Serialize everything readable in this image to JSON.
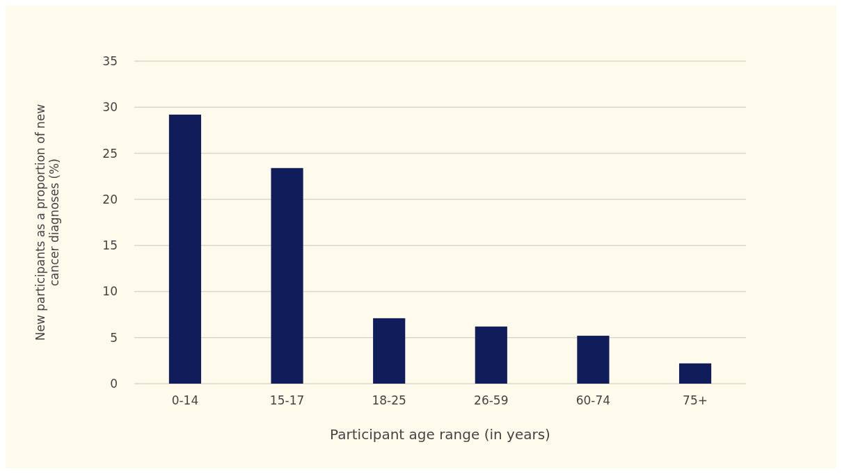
{
  "chart_data": {
    "type": "bar",
    "xlabel": "Participant age range (in years)",
    "ylabel": "New participants as a proportion of new cancer diagnoses (%)",
    "categories": [
      "0-14",
      "15-17",
      "18-25",
      "26-59",
      "60-74",
      "75+"
    ],
    "values": [
      29.2,
      23.4,
      7.1,
      6.2,
      5.2,
      2.2
    ],
    "color": "#111d5a",
    "ylim": [
      0,
      35
    ],
    "yticks": [
      0,
      5,
      10,
      15,
      20,
      25,
      30,
      35
    ],
    "grid": "y"
  }
}
